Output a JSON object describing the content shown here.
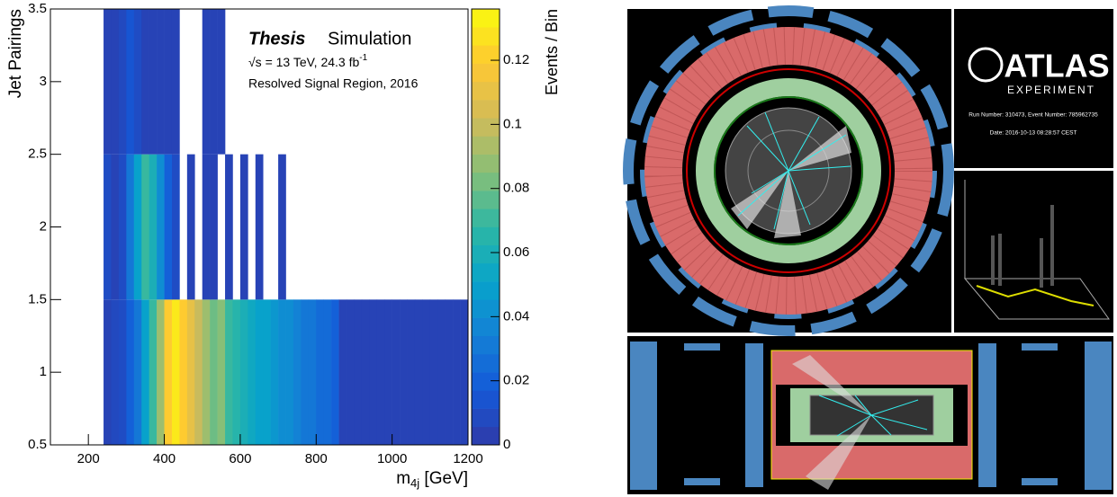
{
  "chart_data": {
    "type": "heatmap",
    "title": "Thesis",
    "subtitle": "Simulation",
    "annotations": [
      "√s = 13 TeV, 24.3 fb",
      "-1",
      "Resolved Signal Region, 2016"
    ],
    "x_label": [
      "m",
      "4j",
      " [GeV]"
    ],
    "y_label": "Jet Pairings",
    "colorbar_label": "Events / Bin",
    "bins": [
      200,
      220,
      240,
      260,
      280,
      300,
      320,
      340,
      360,
      380,
      400,
      420,
      440,
      460,
      480,
      500,
      520,
      540,
      560,
      580,
      600,
      620,
      640,
      660,
      680,
      700,
      720,
      740,
      760,
      780,
      800,
      820,
      840,
      860,
      880,
      900,
      920,
      940,
      960,
      980,
      1000,
      1020,
      1040,
      1060,
      1080,
      1100,
      1120,
      1140,
      1160,
      1180,
      1200
    ],
    "ybins": [
      0.5,
      1.5,
      2.5,
      3.5
    ],
    "z": [
      [
        null,
        null,
        0.005,
        0.008,
        0.01,
        0.02,
        0.03,
        0.05,
        0.07,
        0.09,
        0.12,
        0.13,
        0.12,
        0.11,
        0.1,
        0.09,
        0.08,
        0.085,
        0.07,
        0.065,
        0.06,
        0.055,
        0.05,
        0.05,
        0.045,
        0.04,
        0.04,
        0.035,
        0.03,
        0.03,
        0.025,
        0.025,
        0.02,
        0.005,
        0.005,
        0.005,
        0.005,
        0.005,
        0.005,
        0.005,
        0.005,
        0.005,
        0.005,
        0.005,
        0.005,
        0.005,
        0.005,
        0.005,
        0.005,
        0.005
      ],
      [
        null,
        null,
        0.01,
        0.005,
        0.01,
        0.03,
        0.05,
        0.07,
        0.06,
        0.04,
        0.02,
        0.01,
        null,
        0.005,
        null,
        0.005,
        0.005,
        null,
        0.005,
        null,
        0.005,
        null,
        0.005,
        null,
        null,
        0.005,
        null,
        null,
        null,
        null,
        null,
        null,
        null,
        null,
        null,
        null,
        null,
        null,
        null,
        null,
        null,
        null,
        null,
        null,
        null,
        null,
        null,
        null,
        null,
        null
      ],
      [
        null,
        null,
        0.005,
        0.005,
        0.008,
        0.015,
        0.01,
        0.005,
        0.005,
        0.005,
        0.005,
        0.005,
        null,
        null,
        null,
        0.005,
        0.005,
        0.005,
        null,
        null,
        null,
        null,
        null,
        null,
        null,
        null,
        null,
        null,
        null,
        null,
        null,
        null,
        null,
        null,
        null,
        null,
        null,
        null,
        null,
        null,
        null,
        null,
        null,
        null,
        null,
        null,
        null,
        null,
        null,
        null
      ]
    ],
    "xlim": [
      100,
      1200
    ],
    "xticks": [
      200,
      400,
      600,
      800,
      1000,
      1200
    ],
    "ylim": [
      0.5,
      3.5
    ],
    "yticks": [
      0.5,
      1,
      1.5,
      2,
      2.5,
      3,
      3.5
    ],
    "zlim": [
      0,
      0.136
    ],
    "zticks": [
      0,
      0.02,
      0.04,
      0.06,
      0.08,
      0.1,
      0.12
    ],
    "colorscale": [
      "#2f3aa8",
      "#1459d8",
      "#1480d6",
      "#07a4ca",
      "#2eb7a4",
      "#87bf77",
      "#d1bb59",
      "#fec832",
      "#f9fb0e"
    ]
  },
  "event_display": {
    "logo": "ATLAS",
    "logo_sub": "EXPERIMENT",
    "run_info": "Run Number: 310473, Event Number: 785962735",
    "date": "Date: 2016-10-13 08:28:57 CEST"
  }
}
